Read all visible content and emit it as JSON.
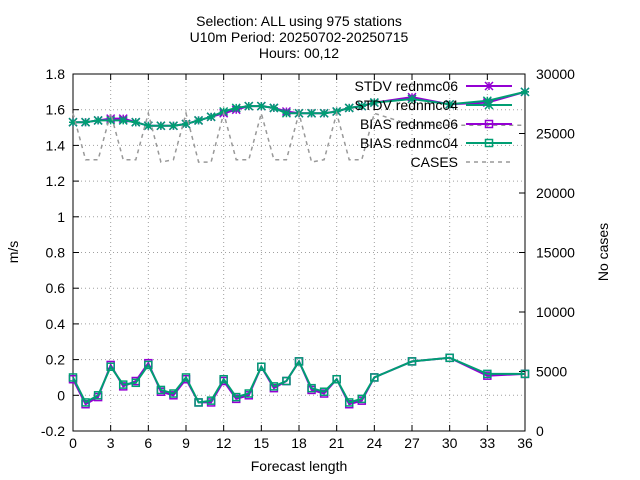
{
  "chart_data": {
    "type": "line",
    "title_lines": [
      "Selection: ALL using   975 stations",
      "U10m   Period: 20250702-20250715",
      "Hours: 00,12"
    ],
    "xlabel": "Forecast length",
    "ylabel": "m/s",
    "y2label": "No cases",
    "xlim": [
      0,
      36
    ],
    "ylim": [
      -0.2,
      1.8
    ],
    "y2lim": [
      0,
      30000
    ],
    "xticks": [
      0,
      3,
      6,
      9,
      12,
      15,
      18,
      21,
      24,
      27,
      30,
      33,
      36
    ],
    "yticks": [
      -0.2,
      0,
      0.2,
      0.4,
      0.6,
      0.8,
      1,
      1.2,
      1.4,
      1.6,
      1.8
    ],
    "y2ticks": [
      0,
      5000,
      10000,
      15000,
      20000,
      25000,
      30000
    ],
    "grid": true,
    "legend_position": "top-right",
    "x": [
      0,
      1,
      2,
      3,
      4,
      5,
      6,
      7,
      8,
      9,
      10,
      11,
      12,
      13,
      14,
      15,
      16,
      17,
      18,
      19,
      20,
      21,
      22,
      23,
      24,
      27,
      30,
      33,
      36
    ],
    "series": [
      {
        "name": "STDV rednmc06",
        "axis": "y",
        "color": "#9400d3",
        "marker": "star",
        "values": [
          1.53,
          1.53,
          1.54,
          1.55,
          1.55,
          1.53,
          1.51,
          1.51,
          1.51,
          1.52,
          1.54,
          1.56,
          1.58,
          1.6,
          1.62,
          1.62,
          1.61,
          1.59,
          1.58,
          1.58,
          1.58,
          1.59,
          1.61,
          1.62,
          1.64,
          1.67,
          1.63,
          1.64,
          1.7
        ]
      },
      {
        "name": "STDV rednmc04",
        "axis": "y",
        "color": "#009e73",
        "marker": "star",
        "values": [
          1.53,
          1.53,
          1.54,
          1.54,
          1.54,
          1.53,
          1.51,
          1.51,
          1.51,
          1.52,
          1.54,
          1.56,
          1.59,
          1.61,
          1.62,
          1.62,
          1.61,
          1.58,
          1.58,
          1.58,
          1.58,
          1.59,
          1.61,
          1.62,
          1.64,
          1.66,
          1.63,
          1.65,
          1.7
        ]
      },
      {
        "name": "BIAS rednmc06",
        "axis": "y",
        "color": "#9400d3",
        "marker": "square",
        "values": [
          0.09,
          -0.05,
          -0.01,
          0.17,
          0.05,
          0.08,
          0.18,
          0.02,
          0.0,
          0.09,
          -0.04,
          -0.04,
          0.08,
          -0.02,
          0.0,
          0.16,
          0.04,
          0.08,
          0.19,
          0.03,
          0.01,
          0.09,
          -0.05,
          -0.03,
          0.1,
          0.19,
          0.21,
          0.11,
          0.12
        ]
      },
      {
        "name": "BIAS rednmc04",
        "axis": "y",
        "color": "#009e73",
        "marker": "square",
        "values": [
          0.1,
          -0.04,
          0.0,
          0.16,
          0.06,
          0.07,
          0.17,
          0.03,
          0.01,
          0.1,
          -0.04,
          -0.03,
          0.09,
          -0.01,
          0.01,
          0.16,
          0.05,
          0.08,
          0.19,
          0.04,
          0.02,
          0.09,
          -0.04,
          -0.02,
          0.1,
          0.19,
          0.21,
          0.12,
          0.12
        ]
      },
      {
        "name": "CASES",
        "axis": "y2",
        "color": "#999999",
        "dashed": true,
        "values": [
          26700,
          22800,
          22800,
          26700,
          22800,
          22800,
          26700,
          22600,
          22800,
          26700,
          22600,
          22600,
          26700,
          22800,
          22800,
          26700,
          22800,
          22800,
          26700,
          22600,
          22800,
          26700,
          22800,
          22800,
          26700,
          25700,
          25700,
          25700,
          25700
        ]
      }
    ]
  }
}
